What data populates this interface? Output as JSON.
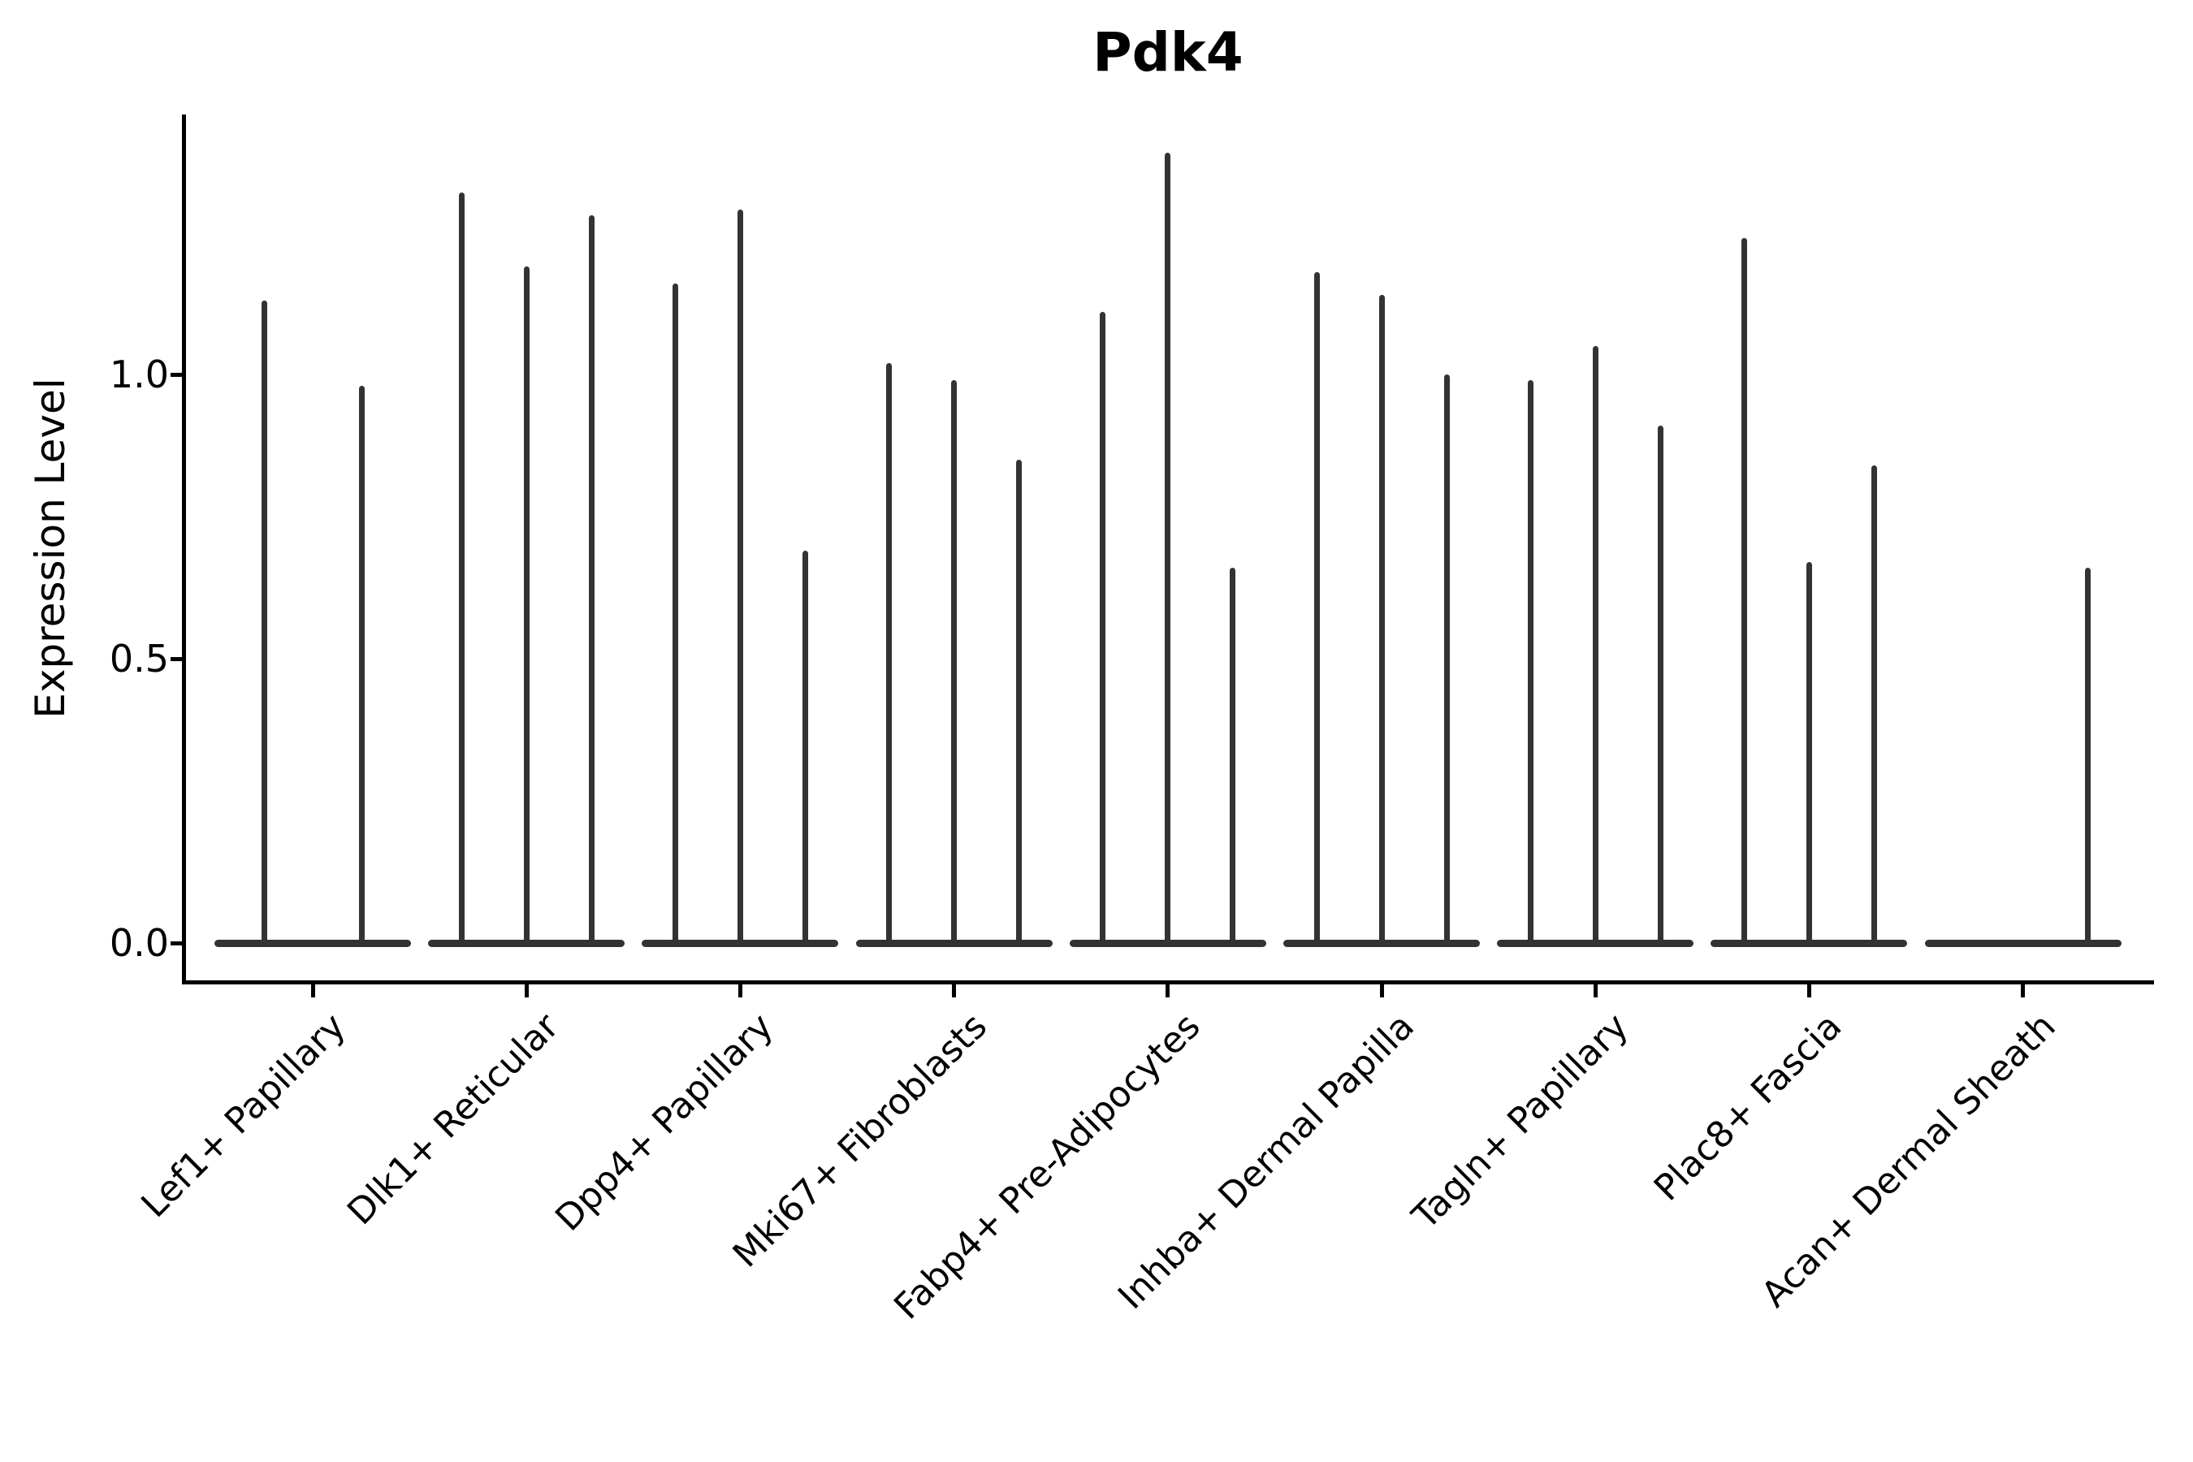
{
  "chart_data": {
    "type": "violin",
    "title": "Pdk4",
    "ylabel": "Expression Level",
    "xlabel": "",
    "ylim": [
      -0.07,
      1.46
    ],
    "yticks": [
      0,
      0.5,
      1
    ],
    "ytick_labels": [
      "0.0",
      "0.5",
      "1.0"
    ],
    "grid": false,
    "legend": "none",
    "description": "Violin plot of Pdk4 expression level per fibroblast cluster; violins are extremely narrow (spike-like) with a wide flat base at 0.",
    "categories": [
      "Lef1+ Papillary",
      "Dlk1+ Reticular",
      "Dpp4+ Papillary",
      "Mki67+ Fibroblasts",
      "Fabp4+ Pre-Adipocytes",
      "Inhba+ Dermal Papilla",
      "Tagln+ Papillary",
      "Plac8+ Fascia",
      "Acan+ Dermal Sheath"
    ],
    "series": [
      {
        "category": "Lef1+ Papillary",
        "violin_maxima": [
          1.13,
          0.98
        ]
      },
      {
        "category": "Dlk1+ Reticular",
        "violin_maxima": [
          1.32,
          1.19,
          1.28
        ]
      },
      {
        "category": "Dpp4+ Papillary",
        "violin_maxima": [
          1.16,
          1.29,
          0.69
        ]
      },
      {
        "category": "Mki67+ Fibroblasts",
        "violin_maxima": [
          1.02,
          0.99,
          0.85
        ]
      },
      {
        "category": "Fabp4+ Pre-Adipocytes",
        "violin_maxima": [
          1.11,
          1.39,
          0.66
        ]
      },
      {
        "category": "Inhba+ Dermal Papilla",
        "violin_maxima": [
          1.18,
          1.14,
          1.0
        ]
      },
      {
        "category": "Tagln+ Papillary",
        "violin_maxima": [
          0.99,
          1.05,
          0.91
        ]
      },
      {
        "category": "Plac8+ Fascia",
        "violin_maxima": [
          1.24,
          0.67,
          0.84
        ]
      },
      {
        "category": "Acan+ Dermal Sheath",
        "violin_maxima": [
          0,
          0,
          0.66
        ]
      }
    ]
  },
  "colors": {
    "violin": "#333333",
    "axis": "#000000",
    "text": "#000000",
    "background": "#ffffff"
  }
}
